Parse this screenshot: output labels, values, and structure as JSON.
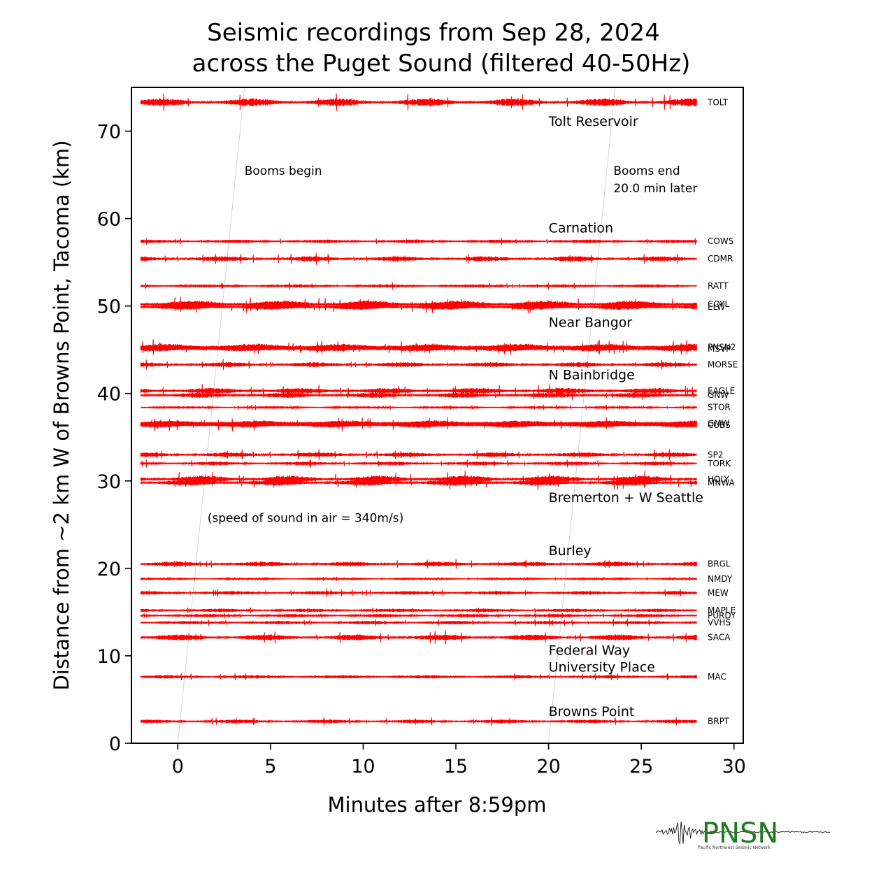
{
  "chart_data": {
    "type": "line",
    "title_line1": "Seismic recordings from Sep 28, 2024",
    "title_line2": "across the Puget Sound (filtered 40-50Hz)",
    "xlabel": "Minutes after 8:59pm",
    "ylabel": "Distance from ~2 km W of Browns Point, Tacoma (km)",
    "xlim": [
      -2.5,
      30.5
    ],
    "ylim": [
      0,
      75
    ],
    "xticks": [
      0,
      5,
      10,
      15,
      20,
      25,
      30
    ],
    "yticks": [
      0,
      10,
      20,
      30,
      40,
      50,
      60,
      70
    ],
    "trace_color": "#ff0000",
    "trace_start_min": -2,
    "trace_end_min": 28,
    "stations": [
      {
        "name": "TOLT",
        "distance_km": 73.3,
        "amplitude": 0.45
      },
      {
        "name": "COWS",
        "distance_km": 57.4,
        "amplitude": 0.2
      },
      {
        "name": "CDMR",
        "distance_km": 55.4,
        "amplitude": 0.3
      },
      {
        "name": "RATT",
        "distance_km": 52.3,
        "amplitude": 0.18
      },
      {
        "name": "COYL",
        "distance_km": 50.2,
        "amplitude": 0.45
      },
      {
        "name": "ELW",
        "distance_km": 49.9,
        "amplitude": 0.35
      },
      {
        "name": "PNSN2",
        "distance_km": 45.3,
        "amplitude": 0.4
      },
      {
        "name": "MSVP",
        "distance_km": 45.1,
        "amplitude": 0.3
      },
      {
        "name": "MORSE",
        "distance_km": 43.3,
        "amplitude": 0.28
      },
      {
        "name": "EAGLE",
        "distance_km": 40.3,
        "amplitude": 0.35
      },
      {
        "name": "GNW",
        "distance_km": 39.8,
        "amplitude": 0.3
      },
      {
        "name": "STOR",
        "distance_km": 38.4,
        "amplitude": 0.15
      },
      {
        "name": "GMW",
        "distance_km": 36.6,
        "amplitude": 0.32
      },
      {
        "name": "CUBS",
        "distance_km": 36.4,
        "amplitude": 0.32
      },
      {
        "name": "SP2",
        "distance_km": 33.0,
        "amplitude": 0.28
      },
      {
        "name": "TORK",
        "distance_km": 32.0,
        "amplitude": 0.22
      },
      {
        "name": "HOLY",
        "distance_km": 30.2,
        "amplitude": 0.42
      },
      {
        "name": "MNWA",
        "distance_km": 29.8,
        "amplitude": 0.35
      },
      {
        "name": "BRGL",
        "distance_km": 20.5,
        "amplitude": 0.28
      },
      {
        "name": "NMDY",
        "distance_km": 18.8,
        "amplitude": 0.12
      },
      {
        "name": "MEW",
        "distance_km": 17.2,
        "amplitude": 0.22
      },
      {
        "name": "MAPLE",
        "distance_km": 15.2,
        "amplitude": 0.2
      },
      {
        "name": "PURDY",
        "distance_km": 14.6,
        "amplitude": 0.2
      },
      {
        "name": "VVHS",
        "distance_km": 13.8,
        "amplitude": 0.2
      },
      {
        "name": "SACA",
        "distance_km": 12.1,
        "amplitude": 0.35
      },
      {
        "name": "MAC",
        "distance_km": 7.6,
        "amplitude": 0.2
      },
      {
        "name": "BRPT",
        "distance_km": 2.5,
        "amplitude": 0.22
      }
    ],
    "place_labels": [
      {
        "text": "Tolt Reservoir",
        "x": 20,
        "y": 70.6
      },
      {
        "text": "Carnation",
        "x": 20,
        "y": 58.4
      },
      {
        "text": "Near Bangor",
        "x": 20,
        "y": 47.6
      },
      {
        "text": "N Bainbridge",
        "x": 20,
        "y": 41.6
      },
      {
        "text": "Bremerton + W Seattle",
        "x": 20,
        "y": 27.6
      },
      {
        "text": "Burley",
        "x": 20,
        "y": 21.5
      },
      {
        "text": "Federal Way",
        "x": 20,
        "y": 10.1
      },
      {
        "text": "University Place",
        "x": 20,
        "y": 8.2
      },
      {
        "text": "Browns Point",
        "x": 20,
        "y": 3.1
      }
    ],
    "annotations": [
      {
        "text": "Booms begin",
        "x": 3.6,
        "y": 65
      },
      {
        "text": "Booms end",
        "x": 23.5,
        "y": 65
      },
      {
        "text": "20.0 min later",
        "x": 23.5,
        "y": 63
      },
      {
        "text": "(speed of sound in air = 340m/s)",
        "x": 1.6,
        "y": 25.3
      }
    ],
    "sound_lines": [
      {
        "x0": 0,
        "y0": 0,
        "x1": 3.6,
        "y1": 75
      },
      {
        "x0": 20,
        "y0": 0,
        "x1": 23.6,
        "y1": 75
      }
    ]
  },
  "logo": {
    "text": "PNSN",
    "subtitle": "Pacific Northwest Seismic Network",
    "color": "#1f7a1f"
  }
}
